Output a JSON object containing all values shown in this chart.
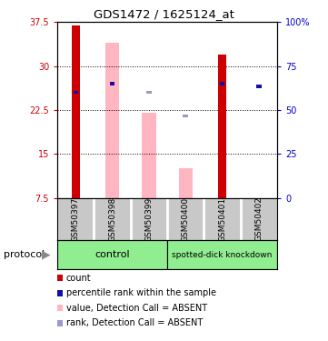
{
  "title": "GDS1472 / 1625124_at",
  "samples": [
    "GSM50397",
    "GSM50398",
    "GSM50399",
    "GSM50400",
    "GSM50401",
    "GSM50402"
  ],
  "ylim_left": [
    7.5,
    37.5
  ],
  "ylim_right": [
    0,
    100
  ],
  "yticks_left": [
    7.5,
    15.0,
    22.5,
    30.0,
    37.5
  ],
  "yticks_right": [
    0,
    25,
    50,
    75,
    100
  ],
  "ytick_labels_left": [
    "7.5",
    "15",
    "22.5",
    "30",
    "37.5"
  ],
  "ytick_labels_right": [
    "0",
    "25",
    "50",
    "75",
    "100%"
  ],
  "red_bar_tops": [
    37.0,
    null,
    null,
    null,
    32.0,
    null
  ],
  "pink_bar_tops": [
    null,
    34.0,
    22.0,
    12.5,
    null,
    null
  ],
  "blue_sq_y": [
    25.5,
    27.0,
    null,
    null,
    27.0,
    26.5
  ],
  "light_blue_sq_y": [
    null,
    null,
    25.5,
    null,
    null,
    null
  ],
  "light_blue_sq2_y": [
    null,
    null,
    null,
    21.5,
    null,
    null
  ],
  "bar_bottom": 7.5,
  "red_bar_color": "#CC0000",
  "pink_bar_color": "#FFB6C1",
  "blue_sq_color": "#1111AA",
  "light_blue_sq_color": "#9999CC",
  "left_axis_color": "#CC0000",
  "right_axis_color": "#0000CC",
  "control_group": [
    0,
    1,
    2
  ],
  "knockdown_group": [
    3,
    4,
    5
  ],
  "group_color": "#90EE90",
  "sample_box_color": "#C8C8C8",
  "legend": [
    {
      "color": "#CC0000",
      "label": "count"
    },
    {
      "color": "#1111AA",
      "label": "percentile rank within the sample"
    },
    {
      "color": "#FFB6C1",
      "label": "value, Detection Call = ABSENT"
    },
    {
      "color": "#9999CC",
      "label": "rank, Detection Call = ABSENT"
    }
  ]
}
